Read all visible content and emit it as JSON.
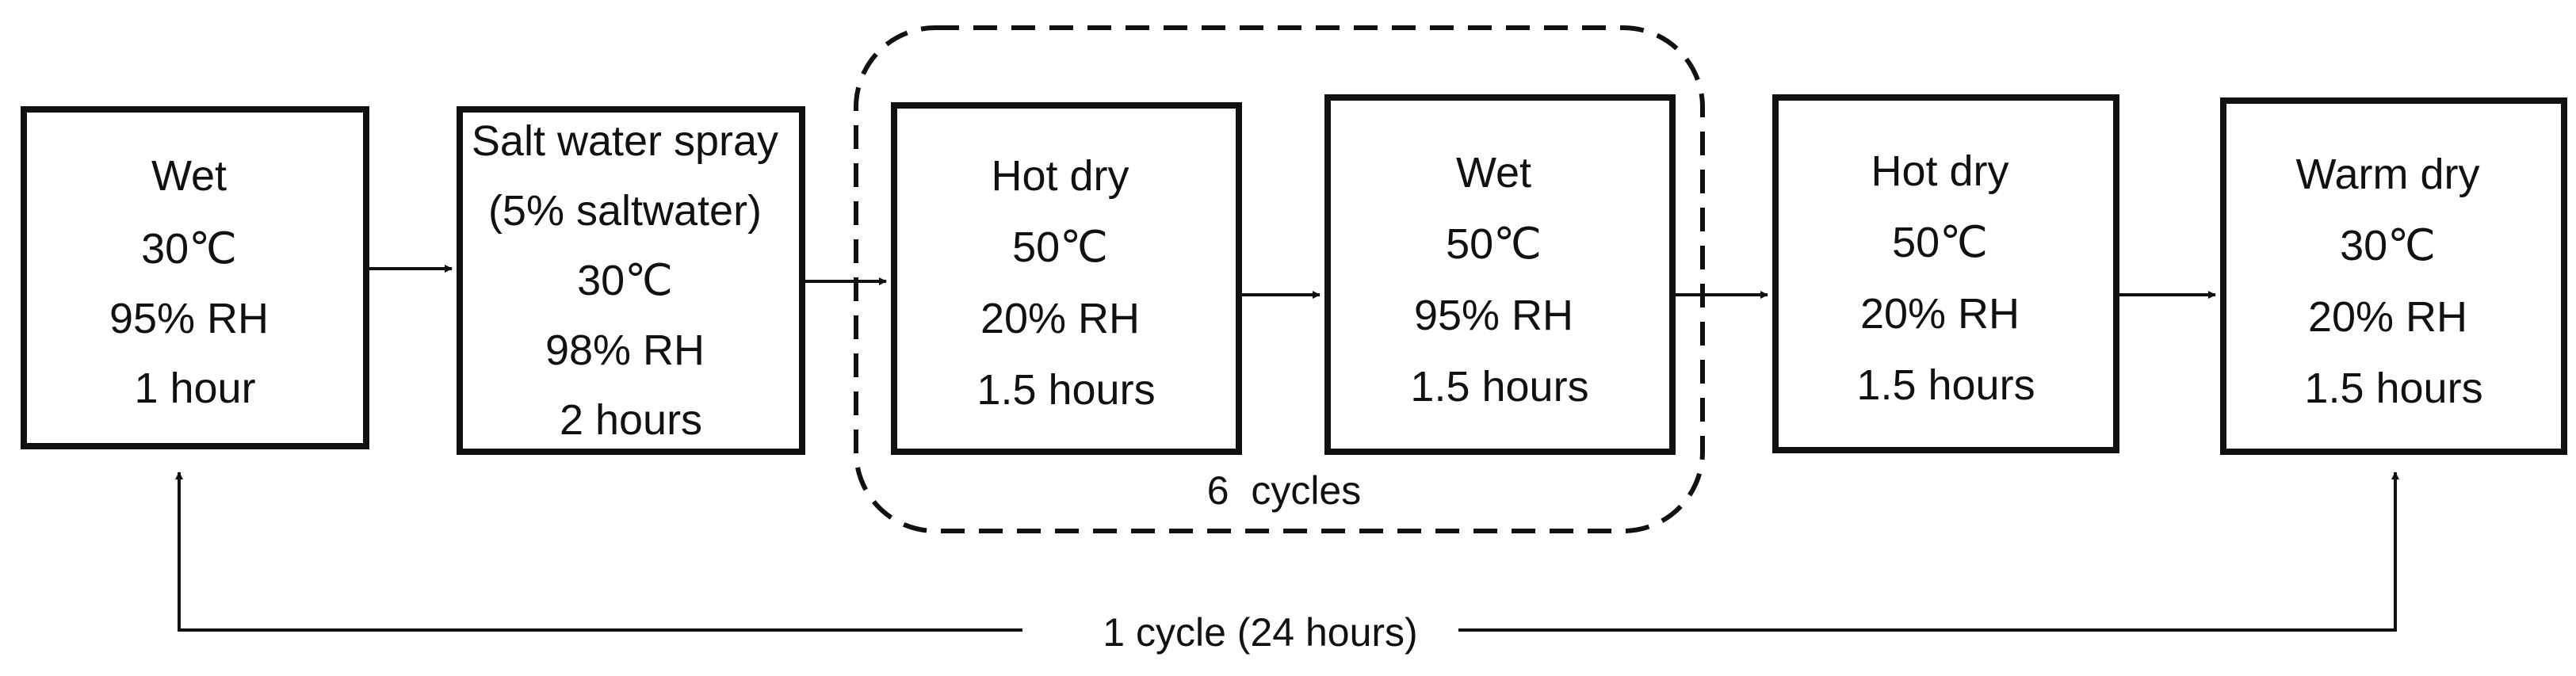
{
  "steps": [
    {
      "lines": [
        "Wet",
        "30℃",
        "95% RH",
        "1 hour"
      ]
    },
    {
      "lines": [
        "Salt water spray",
        "(5% saltwater)",
        "30℃",
        "98% RH",
        "2 hours"
      ]
    },
    {
      "lines": [
        "Hot dry",
        "50℃",
        "20% RH",
        "1.5 hours"
      ]
    },
    {
      "lines": [
        "Wet",
        "50℃",
        "95% RH",
        "1.5 hours"
      ]
    },
    {
      "lines": [
        "Hot dry",
        "50℃",
        "20% RH",
        "1.5 hours"
      ]
    },
    {
      "lines": [
        "Warm dry",
        "30℃",
        "20% RH",
        "1.5 hours"
      ]
    }
  ],
  "repeat_group": {
    "label": "6  cycles"
  },
  "overall_cycle": {
    "label": "1 cycle (24 hours)"
  }
}
